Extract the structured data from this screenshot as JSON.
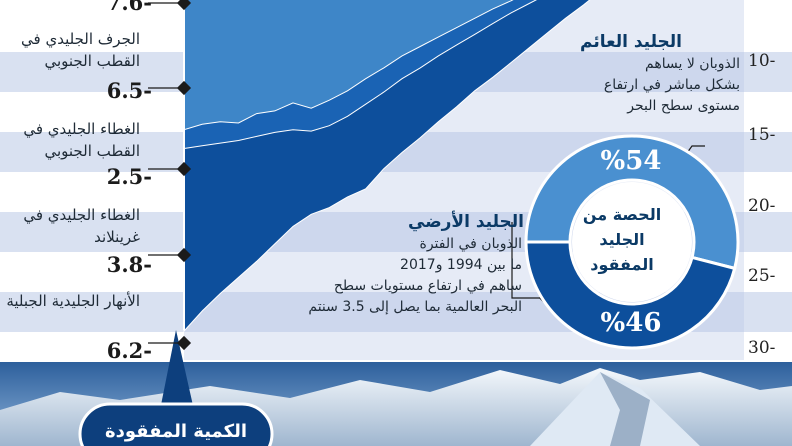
{
  "chart_data": {
    "type": "area",
    "stacked": true,
    "direction": "negative-downward",
    "y_ticks": [
      10,
      15,
      20,
      25,
      30
    ],
    "y_ticks_display": [
      "10-",
      "15-",
      "20-",
      "25-",
      "30-"
    ],
    "ylim": [
      3,
      31
    ],
    "x_index": [
      0,
      1,
      2,
      3,
      4,
      5,
      6,
      7,
      8,
      9,
      10,
      11,
      12,
      13,
      14,
      15,
      16,
      17,
      18,
      19,
      20,
      21,
      22,
      23,
      24
    ],
    "series": [
      {
        "name": "الجرف الجليدي في القطب الجنوبي",
        "value": "6.5-",
        "color": "#9ec5e6",
        "cumulative": [
          3.5,
          3.5,
          3.6,
          3.2,
          3.0,
          3.6,
          3.2,
          3.4,
          3.0,
          2.8,
          2.6,
          2.3,
          2.0,
          2.0,
          1.8,
          1.7,
          1.5,
          1.4,
          1.4,
          1.3,
          1.2,
          1.2,
          1.1,
          1.1,
          1.0
        ]
      },
      {
        "name": "الغطاء الجليدي في القطب الجنوبي",
        "value": "2.5-",
        "color": "#3e86c8",
        "cumulative": [
          14.0,
          13.6,
          13.4,
          13.5,
          12.8,
          12.6,
          12.0,
          12.4,
          11.8,
          11.1,
          10.2,
          9.4,
          8.5,
          7.8,
          7.1,
          6.4,
          5.7,
          5.0,
          4.4,
          3.7,
          3.1,
          2.6,
          2.2,
          1.8,
          1.4
        ]
      },
      {
        "name": "الغطاء الجليدي في غرينلاند",
        "value": "3.8-",
        "color": "#1a63b4",
        "cumulative": [
          15.4,
          15.2,
          15.0,
          14.8,
          14.5,
          14.2,
          14.0,
          14.1,
          13.7,
          13.0,
          12.1,
          11.2,
          10.2,
          9.4,
          8.5,
          7.7,
          6.9,
          6.1,
          5.3,
          4.6,
          3.9,
          3.2,
          2.6,
          2.1,
          1.6
        ]
      },
      {
        "name": "الأنهار الجليدية الجبلية",
        "value": "6.2-",
        "color": "#0d4f9c",
        "cumulative": [
          29.0,
          27.5,
          26.2,
          25.0,
          23.8,
          22.5,
          21.2,
          20.3,
          19.8,
          19.0,
          18.4,
          16.9,
          15.7,
          14.6,
          13.4,
          12.3,
          11.1,
          10.1,
          9.0,
          7.9,
          6.8,
          5.7,
          4.7,
          3.6,
          2.6
        ]
      }
    ],
    "top_value": "7.6-",
    "pie": {
      "title": "الحصة من الجليد المفقود",
      "slices": [
        {
          "label": "%54",
          "value": 54,
          "color": "#4a90d0"
        },
        {
          "label": "%46",
          "value": 46,
          "color": "#0d4f9c"
        }
      ]
    },
    "annotations": {
      "floating_ice": {
        "title": "الجليد العائم",
        "lines": [
          "الذوبان لا يساهم",
          "بشكل مباشر في ارتفاع",
          "مستوى سطح البحر"
        ]
      },
      "land_ice": {
        "title": "الجليد الأرضي",
        "lines": [
          "الذوبان في الفترة",
          "ما بين 1994 و2017",
          "ساهم في ارتفاع مستويات سطح",
          "البحر العالمية بما يصل إلى 3.5 سنتم"
        ]
      }
    },
    "callout": "الكمية المفقودة"
  },
  "colors": {
    "band_light": "#cfd9ee",
    "band_dark": "#b8c6e4",
    "axis_line": "#ffffff",
    "marker": "#1b1b1b",
    "mountain_sky": "#3f6fa7",
    "callout_bg": "#0d3f7d"
  }
}
